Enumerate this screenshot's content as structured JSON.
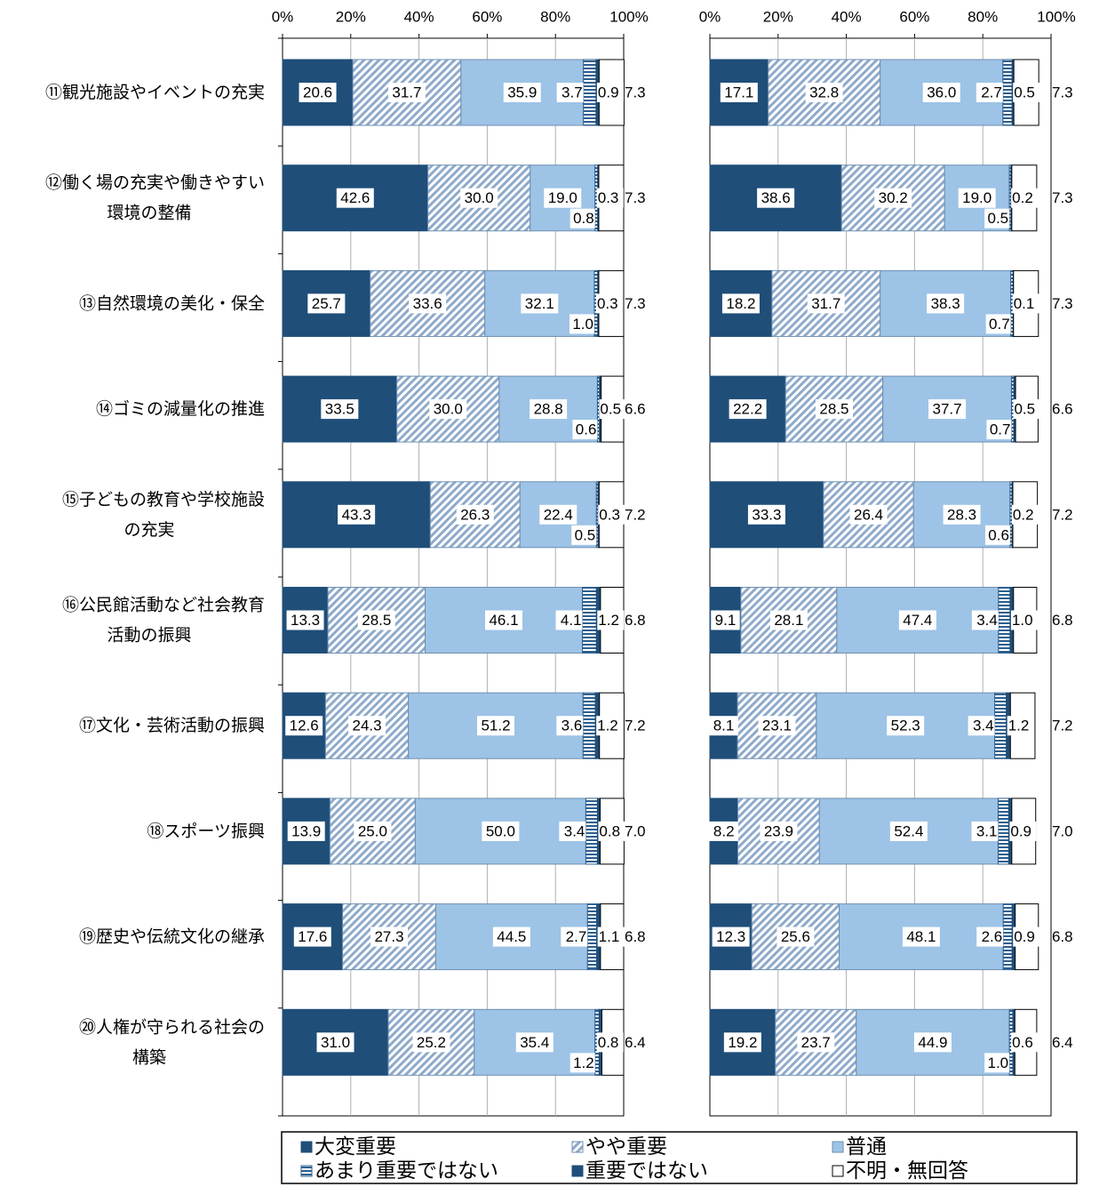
{
  "chart_data": {
    "type": "bar",
    "orientation": "horizontal",
    "stacked": "percent",
    "xlim": [
      0,
      100
    ],
    "x_ticks": [
      "0%",
      "20%",
      "40%",
      "60%",
      "80%",
      "100%"
    ],
    "categories": [
      [
        "⑪観光施設やイベントの充実"
      ],
      [
        "⑫働く場の充実や働きやすい",
        "環境の整備"
      ],
      [
        "⑬自然環境の美化・保全"
      ],
      [
        "⑭ゴミの減量化の推進"
      ],
      [
        "⑮子どもの教育や学校施設",
        "の充実"
      ],
      [
        "⑯公民館活動など社会教育",
        "活動の振興"
      ],
      [
        "⑰文化・芸術活動の振興"
      ],
      [
        "⑱スポーツ振興"
      ],
      [
        "⑲歴史や伝統文化の継承"
      ],
      [
        "⑳人権が守られる社会の",
        "構築"
      ]
    ],
    "legend": {
      "placement": "bottom",
      "entries": [
        "大変重要",
        "やや重要",
        "普通",
        "あまり重要ではない",
        "重要ではない",
        "不明・無回答"
      ]
    },
    "series_colors": [
      "#1f4e79",
      "#c9d6e6",
      "#9dc3e6",
      "#d6e4f0",
      "#1f4e79",
      "#ffffff"
    ],
    "charts": [
      {
        "series": [
          {
            "name": "大変重要",
            "values": [
              20.6,
              42.6,
              25.7,
              33.5,
              43.3,
              13.3,
              12.6,
              13.9,
              17.6,
              31.0
            ]
          },
          {
            "name": "やや重要",
            "values": [
              31.7,
              30.0,
              33.6,
              30.0,
              26.3,
              28.5,
              24.3,
              25.0,
              27.3,
              25.2
            ]
          },
          {
            "name": "普通",
            "values": [
              35.9,
              19.0,
              32.1,
              28.8,
              22.4,
              46.1,
              51.2,
              50.0,
              44.5,
              35.4
            ]
          },
          {
            "name": "あまり重要ではない",
            "values": [
              3.7,
              0.8,
              1.0,
              0.6,
              0.5,
              4.1,
              3.6,
              3.4,
              2.7,
              1.2
            ]
          },
          {
            "name": "重要ではない",
            "values": [
              0.9,
              0.3,
              0.3,
              0.5,
              0.3,
              1.2,
              1.2,
              0.8,
              1.1,
              0.8
            ]
          },
          {
            "name": "不明・無回答",
            "values": [
              7.3,
              7.3,
              7.3,
              6.6,
              7.2,
              6.8,
              7.2,
              7.0,
              6.8,
              6.4
            ]
          }
        ]
      },
      {
        "series": [
          {
            "name": "大変重要",
            "values": [
              17.1,
              38.6,
              18.2,
              22.2,
              33.3,
              9.1,
              8.1,
              8.2,
              12.3,
              19.2
            ]
          },
          {
            "name": "やや重要",
            "values": [
              32.8,
              30.2,
              31.7,
              28.5,
              26.4,
              28.1,
              23.1,
              23.9,
              25.6,
              23.7
            ]
          },
          {
            "name": "普通",
            "values": [
              36.0,
              19.0,
              38.3,
              37.7,
              28.3,
              47.4,
              52.3,
              52.4,
              48.1,
              44.9
            ]
          },
          {
            "name": "あまり重要ではない",
            "values": [
              2.7,
              0.5,
              0.7,
              0.7,
              0.6,
              3.4,
              3.4,
              3.1,
              2.6,
              1.0
            ]
          },
          {
            "name": "重要ではない",
            "values": [
              0.5,
              0.2,
              0.1,
              0.5,
              0.2,
              1.0,
              1.2,
              0.9,
              0.9,
              0.6
            ]
          },
          {
            "name": "不明・無回答",
            "values": [
              7.3,
              7.3,
              7.3,
              6.6,
              7.2,
              6.8,
              7.2,
              7.0,
              6.8,
              6.4
            ]
          }
        ]
      }
    ]
  }
}
